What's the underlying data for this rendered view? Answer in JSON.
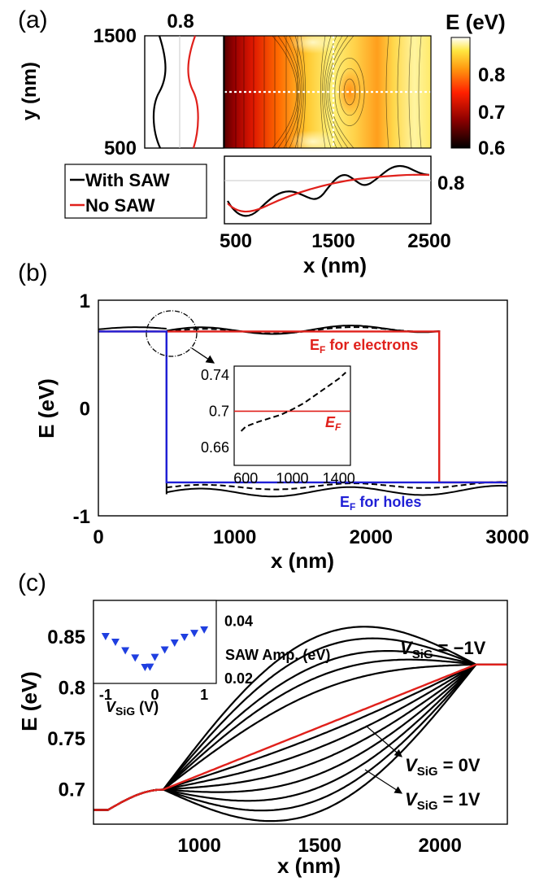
{
  "panels": {
    "a": "(a)",
    "b": "(b)",
    "c": "(c)"
  },
  "chart_data": [
    {
      "type": "heatmap",
      "panel": "(a)",
      "colorbar_title": "E (eV)",
      "colorbar_ticks": [
        "0.8",
        "0.7",
        "0.6"
      ],
      "colorbar_range": [
        0.6,
        0.88
      ],
      "ylabel": "y (nm)",
      "yticks": [
        "1500",
        "500"
      ],
      "xlabel": "x (nm)",
      "xticks": [
        "500",
        "1500",
        "2500"
      ],
      "left_profile_tick": "0.8",
      "bottom_profile_tick": "0.8",
      "legend": [
        {
          "name": "With SAW",
          "color": "#000000"
        },
        {
          "name": "No SAW",
          "color": "#e0201b"
        }
      ],
      "x_range": [
        430,
        2530
      ],
      "y_range": [
        500,
        1500
      ],
      "colors": {
        "with_saw": "#000000",
        "no_saw": "#e0201b"
      }
    },
    {
      "type": "line",
      "panel": "(b)",
      "ylabel": "E (eV)",
      "xlabel": "x (nm)",
      "xlim": [
        0,
        3000
      ],
      "ylim": [
        -1,
        1
      ],
      "xticks": [
        "0",
        "1000",
        "2000",
        "3000"
      ],
      "yticks": [
        "1",
        "0",
        "-1"
      ],
      "annotations": {
        "electrons_pre": "E",
        "electrons_sub": "F",
        "electrons_post": " for electrons",
        "holes_pre": "E",
        "holes_sub": "F",
        "holes_post": " for holes"
      },
      "fermi_electrons": {
        "x": [
          0,
          500,
          500,
          2500,
          2500,
          3000
        ],
        "y": [
          0.71,
          0.71,
          0.71,
          0.71,
          -0.69,
          -0.69
        ]
      },
      "fermi_holes": {
        "x": [
          0,
          500,
          500,
          3000
        ],
        "y": [
          0.71,
          0.71,
          -0.69,
          -0.69
        ]
      },
      "colors": {
        "electrons": "#e0201b",
        "holes": "#1f1fd6",
        "solid": "#000000"
      },
      "inset": {
        "xlim": [
          500,
          1500
        ],
        "ylim": [
          0.64,
          0.75
        ],
        "xticks": [
          "600",
          "1000",
          "1400"
        ],
        "yticks": [
          "0.74",
          "0.7",
          "0.66"
        ],
        "label_pre": "E",
        "label_sub": "F",
        "fermi_level": 0.7,
        "dashed": {
          "x": [
            560,
            600,
            700,
            800,
            900,
            1000,
            1100,
            1200,
            1300,
            1400,
            1460
          ],
          "y": [
            0.678,
            0.683,
            0.688,
            0.692,
            0.696,
            0.702,
            0.709,
            0.718,
            0.727,
            0.736,
            0.743
          ]
        }
      }
    },
    {
      "type": "line",
      "panel": "(c)",
      "ylabel": "E (eV)",
      "xlabel": "x (nm)",
      "xlim": [
        560,
        2280
      ],
      "ylim": [
        0.665,
        0.885
      ],
      "xticks": [
        "1000",
        "1500",
        "2000"
      ],
      "yticks": [
        "0.85",
        "0.8",
        "0.75",
        "0.7"
      ],
      "annotations": {
        "top_pre": "V",
        "top_sub": "SiG",
        "top_post": " = −1V",
        "mid_pre": "V",
        "mid_sub": "SiG",
        "mid_post": " = 0V",
        "bot_pre": "V",
        "bot_sub": "SiG",
        "bot_post": " = 1V"
      },
      "curve_start_level": 0.699,
      "curve_end_level": 0.822,
      "family_deviations": [
        0.09,
        0.077,
        0.062,
        0.05,
        0.036,
        -0.008,
        -0.02,
        -0.033,
        -0.046,
        -0.059,
        -0.071,
        -0.083
      ],
      "red_deviation": 0,
      "colors": {
        "family": "#000000",
        "red": "#e0201b",
        "markers": "#1f3fe0"
      },
      "inset": {
        "xlabel_pre": "V",
        "xlabel_sub": "SiG",
        "xlabel_post": " (V)",
        "ylabel": "SAW Amp. (eV)",
        "xlim": [
          -1.08,
          1.08
        ],
        "ylim": [
          0.018,
          0.047
        ],
        "xticks": [
          "-1",
          "0",
          "1"
        ],
        "yticks": [
          "0.04",
          "0.02"
        ],
        "points": {
          "x": [
            -1.0,
            -0.8,
            -0.6,
            -0.4,
            -0.2,
            -0.1,
            0.0,
            0.2,
            0.4,
            0.6,
            0.8,
            1.0
          ],
          "y": [
            0.0345,
            0.0325,
            0.0295,
            0.027,
            0.0237,
            0.0238,
            0.0272,
            0.0298,
            0.0322,
            0.0342,
            0.0356,
            0.0368
          ]
        }
      }
    }
  ]
}
